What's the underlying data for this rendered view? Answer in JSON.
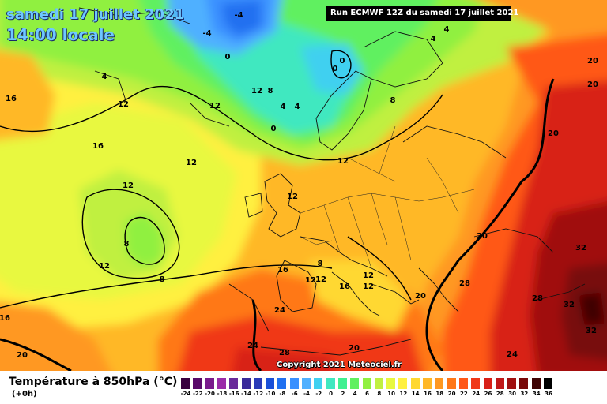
{
  "header": {
    "date_line": "samedi 17 juillet 2021",
    "time_line": "14:00 locale",
    "run_label": "Run ECMWF 12Z du samedi 17 juillet 2021"
  },
  "copyright": "Copyright 2021 Meteociel.fr",
  "legend": {
    "title": "Température à 850hPa (°C)",
    "subtitle": "(+0h)",
    "levels": [
      "-24",
      "-22",
      "-20",
      "-18",
      "-16",
      "-14",
      "-12",
      "-10",
      "-8",
      "-6",
      "-4",
      "-2",
      "0",
      "2",
      "4",
      "6",
      "8",
      "10",
      "12",
      "14",
      "16",
      "18",
      "20",
      "22",
      "24",
      "26",
      "28",
      "30",
      "32",
      "34",
      "36"
    ],
    "colors": [
      "#3a0040",
      "#5a0a6a",
      "#7a1a8c",
      "#9a2aa8",
      "#6a2a9a",
      "#3a2a9a",
      "#2a3ab8",
      "#1a50d8",
      "#2070f0",
      "#3a90ff",
      "#50b0ff",
      "#40d0f0",
      "#40e8c0",
      "#40f090",
      "#60f060",
      "#90f040",
      "#c0f040",
      "#e8f840",
      "#fff040",
      "#ffd830",
      "#ffb828",
      "#ff9820",
      "#ff7818",
      "#ff5818",
      "#f03818",
      "#d82018",
      "#c01818",
      "#a01010",
      "#780808",
      "#400404",
      "#000000"
    ]
  },
  "map_labels": [
    {
      "text": "-4"
    },
    {
      "text": "-4"
    },
    {
      "text": "0"
    },
    {
      "text": "0"
    },
    {
      "text": "4"
    },
    {
      "text": "4"
    },
    {
      "text": "4"
    },
    {
      "text": "8"
    },
    {
      "text": "12"
    },
    {
      "text": "8"
    },
    {
      "text": "4"
    },
    {
      "text": "12"
    },
    {
      "text": "0"
    },
    {
      "text": "0"
    },
    {
      "text": "8"
    },
    {
      "text": "16"
    },
    {
      "text": "12"
    },
    {
      "text": "16"
    },
    {
      "text": "12"
    },
    {
      "text": "12"
    },
    {
      "text": "12"
    },
    {
      "text": "12"
    },
    {
      "text": "8"
    },
    {
      "text": "12"
    },
    {
      "text": "8"
    },
    {
      "text": "16"
    },
    {
      "text": "12"
    },
    {
      "text": "12"
    },
    {
      "text": "16"
    },
    {
      "text": "12"
    },
    {
      "text": "20"
    },
    {
      "text": "20"
    },
    {
      "text": "20"
    },
    {
      "text": "20"
    },
    {
      "text": "20"
    },
    {
      "text": "32"
    },
    {
      "text": "28"
    },
    {
      "text": "28"
    },
    {
      "text": "32"
    },
    {
      "text": "32"
    },
    {
      "text": "16"
    },
    {
      "text": "24"
    },
    {
      "text": "24"
    },
    {
      "text": "28"
    },
    {
      "text": "20"
    },
    {
      "text": "20"
    },
    {
      "text": "24"
    },
    {
      "text": "4"
    },
    {
      "text": "12"
    }
  ]
}
